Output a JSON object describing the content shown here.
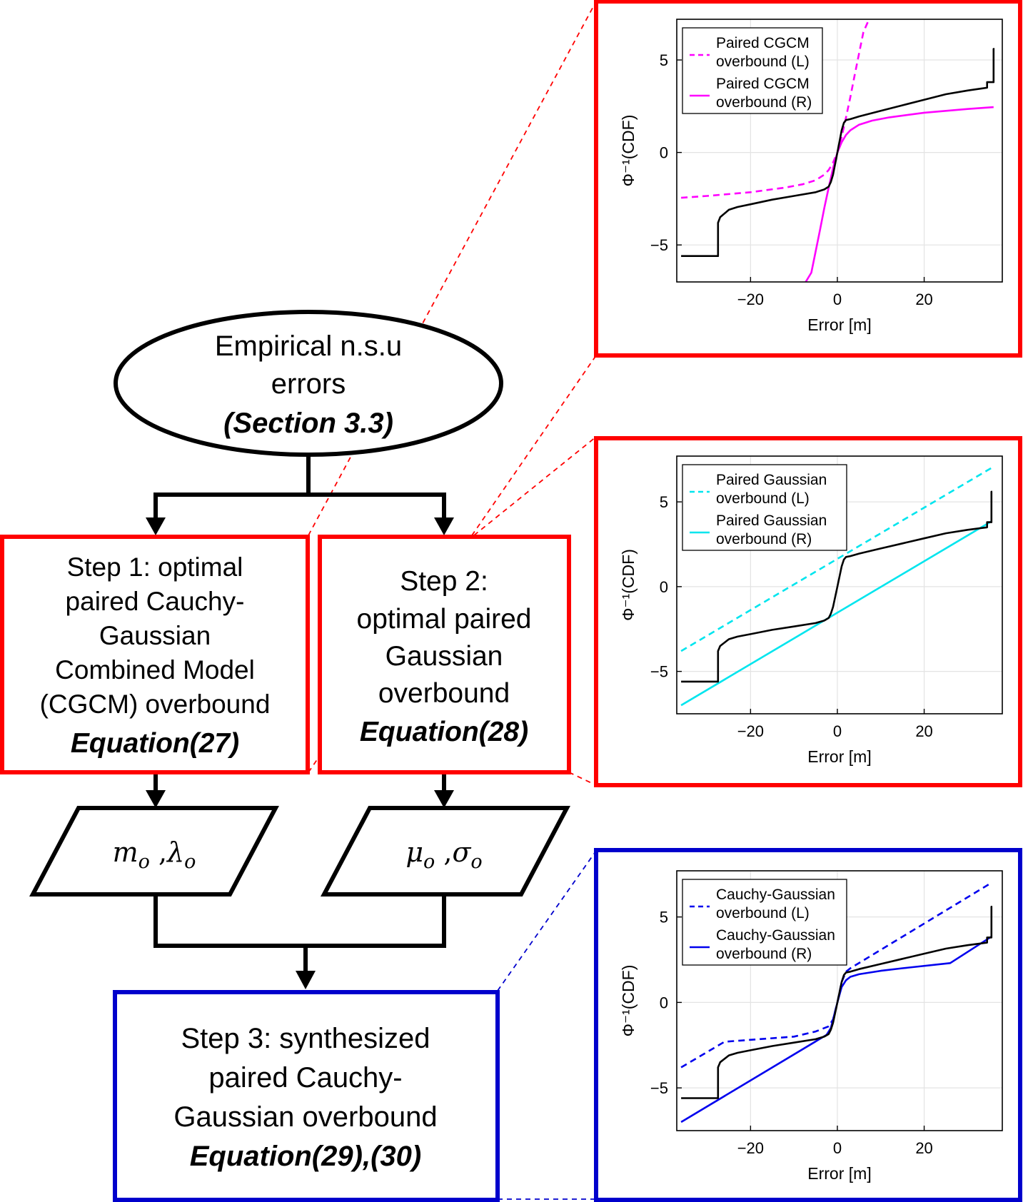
{
  "flow": {
    "start": {
      "line1": "Empirical n.s.u",
      "line2": "errors",
      "ref": "(Section 3.3)"
    },
    "step1": {
      "lines": [
        "Step 1: optimal",
        "paired Cauchy-",
        "Gaussian",
        "Combined Model",
        "(CGCM) overbound"
      ],
      "eq": "Equation(27)"
    },
    "step2": {
      "lines": [
        "Step 2:",
        "optimal paired",
        "Gaussian",
        "overbound"
      ],
      "eq": "Equation(28)"
    },
    "param1": {
      "a": "m",
      "a_sub": "o",
      "sep": " ,",
      "b": "λ",
      "b_sub": "o"
    },
    "param2": {
      "a": "μ",
      "a_sub": "o",
      "sep": " ,",
      "b": "σ",
      "b_sub": "o"
    },
    "step3": {
      "lines": [
        "Step 3: synthesized",
        "paired Cauchy-",
        "Gaussian overbound"
      ],
      "eq": "Equation(29),(30)"
    },
    "colors": {
      "red": "#ff0000",
      "blue": "#0000cc",
      "black": "#000000"
    }
  },
  "chart_data": [
    {
      "type": "line",
      "panel": "top",
      "xlabel": "Error [m]",
      "ylabel": "Φ⁻¹(CDF)",
      "xlim": [
        -37,
        38
      ],
      "ylim": [
        -7,
        7.2
      ],
      "xticks": [
        -20,
        0,
        20
      ],
      "xtick_labels": [
        "−20",
        "0",
        "20"
      ],
      "yticks": [
        -5,
        0,
        5
      ],
      "ytick_labels": [
        "−5",
        "0",
        "5"
      ],
      "grid": true,
      "legend_position": "top-left",
      "frame_color": "#ff0000",
      "series": [
        {
          "name": "Paired CGCM overbound (L)",
          "color": "#ff00ff",
          "style": "dashed",
          "legend": true,
          "x": [
            -36,
            -30,
            -20,
            -12,
            -8,
            -5,
            -3,
            -2,
            -1,
            0,
            1,
            2,
            3,
            4,
            6,
            7.3
          ],
          "y": [
            -2.45,
            -2.35,
            -2.15,
            -1.9,
            -1.72,
            -1.5,
            -1.2,
            -0.95,
            -0.55,
            0.0,
            0.85,
            1.9,
            3.0,
            4.2,
            6.5,
            7.2
          ]
        },
        {
          "name": "Paired CGCM overbound (R)",
          "color": "#ff00ff",
          "style": "solid",
          "legend": true,
          "x": [
            -7.3,
            -6,
            -4,
            -3,
            -2,
            -1,
            0,
            1,
            2,
            3,
            5,
            8,
            12,
            20,
            30,
            36
          ],
          "y": [
            -7.0,
            -6.5,
            -4.2,
            -3.0,
            -1.9,
            -0.85,
            0.0,
            0.55,
            0.95,
            1.2,
            1.5,
            1.72,
            1.9,
            2.15,
            2.35,
            2.45
          ]
        },
        {
          "name": "Empirical",
          "color": "#000000",
          "style": "solid",
          "legend": false,
          "x": [
            -36,
            -27.5,
            -27.5,
            -27,
            -25,
            -23,
            -20,
            -15,
            -10,
            -5,
            -3,
            -2,
            -1.5,
            -1,
            0,
            1,
            1.5,
            2,
            3,
            5,
            10,
            15,
            20,
            25,
            30,
            33,
            34.5,
            34.5,
            36,
            36,
            36.2
          ],
          "y": [
            -5.6,
            -5.6,
            -3.8,
            -3.5,
            -3.1,
            -2.95,
            -2.8,
            -2.55,
            -2.35,
            -2.15,
            -2.0,
            -1.85,
            -1.6,
            -1.2,
            0.0,
            1.2,
            1.6,
            1.75,
            1.8,
            1.95,
            2.25,
            2.55,
            2.85,
            3.15,
            3.35,
            3.45,
            3.5,
            3.8,
            3.8,
            5.6,
            5.6
          ]
        }
      ]
    },
    {
      "type": "line",
      "panel": "middle",
      "xlabel": "Error [m]",
      "ylabel": "Φ⁻¹(CDF)",
      "xlim": [
        -37,
        38
      ],
      "ylim": [
        -7.5,
        7.7
      ],
      "xticks": [
        -20,
        0,
        20
      ],
      "xtick_labels": [
        "−20",
        "0",
        "20"
      ],
      "yticks": [
        -5,
        0,
        5
      ],
      "ytick_labels": [
        "−5",
        "0",
        "5"
      ],
      "grid": true,
      "legend_position": "top-left",
      "frame_color": "#ff0000",
      "series": [
        {
          "name": "Paired Gaussian overbound (L)",
          "color": "#00e5ee",
          "style": "dashed",
          "legend": true,
          "x": [
            -36,
            35.5
          ],
          "y": [
            -3.8,
            7.0
          ]
        },
        {
          "name": "Paired Gaussian overbound (R)",
          "color": "#00e5ee",
          "style": "solid",
          "legend": true,
          "x": [
            -36,
            35.5
          ],
          "y": [
            -7.0,
            3.85
          ]
        },
        {
          "name": "Empirical",
          "color": "#000000",
          "style": "solid",
          "legend": false,
          "x": [
            -36,
            -27.5,
            -27.5,
            -27,
            -25,
            -23,
            -20,
            -15,
            -10,
            -5,
            -3,
            -2,
            -1.5,
            -1,
            0,
            1,
            1.5,
            2,
            3,
            5,
            10,
            15,
            20,
            25,
            30,
            33,
            34.5,
            34.5,
            35.5,
            35.5,
            35.7
          ],
          "y": [
            -5.6,
            -5.6,
            -3.8,
            -3.5,
            -3.1,
            -2.95,
            -2.8,
            -2.55,
            -2.35,
            -2.15,
            -2.0,
            -1.85,
            -1.6,
            -1.2,
            0.0,
            1.2,
            1.6,
            1.75,
            1.8,
            1.95,
            2.25,
            2.55,
            2.85,
            3.15,
            3.35,
            3.45,
            3.5,
            3.8,
            3.8,
            5.6,
            5.6
          ]
        }
      ]
    },
    {
      "type": "line",
      "panel": "bottom",
      "xlabel": "Error [m]",
      "ylabel": "Φ⁻¹(CDF)",
      "xlim": [
        -37,
        38
      ],
      "ylim": [
        -7.5,
        7.7
      ],
      "xticks": [
        -20,
        0,
        20
      ],
      "xtick_labels": [
        "−20",
        "0",
        "20"
      ],
      "yticks": [
        -5,
        0,
        5
      ],
      "ytick_labels": [
        "−5",
        "0",
        "5"
      ],
      "grid": true,
      "legend_position": "top-left",
      "frame_color": "#0000cc",
      "series": [
        {
          "name": "Cauchy-Gaussian overbound (L)",
          "color": "#0000ee",
          "style": "dashed",
          "legend": true,
          "x": [
            -36,
            -26,
            -10,
            -5,
            -2,
            -1,
            0,
            1,
            2,
            3,
            35.5
          ],
          "y": [
            -3.8,
            -2.3,
            -2.0,
            -1.7,
            -1.4,
            -1.0,
            0.0,
            1.2,
            1.8,
            2.0,
            7.0
          ]
        },
        {
          "name": "Cauchy-Gaussian overbound (R)",
          "color": "#0000ee",
          "style": "solid",
          "legend": true,
          "x": [
            -36,
            -2.5,
            -1.5,
            -1,
            0,
            1,
            2,
            3,
            5,
            10,
            15,
            26,
            35.5
          ],
          "y": [
            -7.0,
            -1.9,
            -1.5,
            -1.0,
            0.0,
            0.9,
            1.3,
            1.5,
            1.65,
            1.85,
            2.0,
            2.3,
            3.85
          ]
        },
        {
          "name": "Empirical",
          "color": "#000000",
          "style": "solid",
          "legend": false,
          "x": [
            -36,
            -27.5,
            -27.5,
            -27,
            -25,
            -23,
            -20,
            -15,
            -10,
            -5,
            -3,
            -2,
            -1.5,
            -1,
            0,
            1,
            1.5,
            2,
            3,
            5,
            10,
            15,
            20,
            25,
            30,
            33,
            34.5,
            34.5,
            35.5,
            35.5,
            35.7
          ],
          "y": [
            -5.6,
            -5.6,
            -3.8,
            -3.5,
            -3.1,
            -2.95,
            -2.8,
            -2.55,
            -2.35,
            -2.15,
            -2.0,
            -1.85,
            -1.6,
            -1.2,
            0.0,
            1.2,
            1.6,
            1.75,
            1.8,
            1.95,
            2.25,
            2.55,
            2.85,
            3.15,
            3.35,
            3.45,
            3.5,
            3.8,
            3.8,
            5.6,
            5.6
          ]
        }
      ]
    }
  ]
}
